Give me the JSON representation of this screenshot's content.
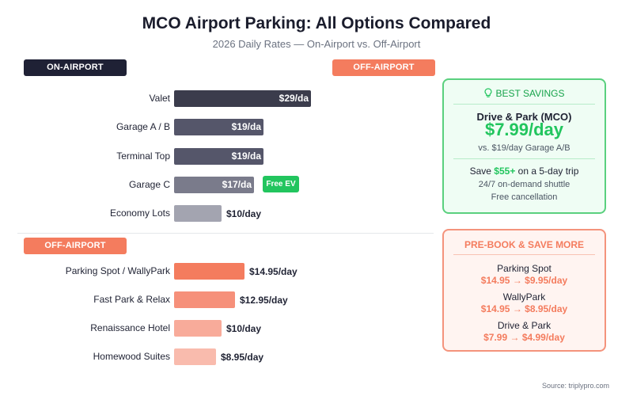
{
  "title": "MCO Airport Parking: All Options Compared",
  "subtitle": "2026 Daily Rates — On-Airport vs. Off-Airport",
  "sections": {
    "on_airport": "ON-AIRPORT",
    "off_airport_top": "OFF-AIRPORT",
    "off_airport": "OFF-AIRPORT"
  },
  "chart_data": {
    "type": "bar",
    "orientation": "horizontal",
    "unit": "$/day",
    "groups": [
      {
        "name": "ON-AIRPORT",
        "categories": [
          "Valet",
          "Garage A / B",
          "Terminal Top",
          "Garage C",
          "Economy Lots"
        ],
        "values": [
          29,
          19,
          19,
          17,
          10
        ],
        "labels": [
          "$29/da",
          "$19/da",
          "$19/da",
          "$17/da",
          "$10/day"
        ],
        "colors": [
          "#3b3c4c",
          "#55566a",
          "#55566a",
          "#7a7b8b",
          "#a3a4b0"
        ]
      },
      {
        "name": "OFF-AIRPORT",
        "categories": [
          "Parking Spot / WallyPark",
          "Fast Park & Relax",
          "Renaissance Hotel",
          "Homewood Suites"
        ],
        "values": [
          14.95,
          12.95,
          10,
          8.95
        ],
        "labels": [
          "$14.95/day",
          "$12.95/day",
          "$10/day",
          "$8.95/day"
        ],
        "colors": [
          "#f47c5e",
          "#f6907a",
          "#f8ab9a",
          "#f9bbad"
        ]
      }
    ],
    "annotations": [
      {
        "category": "Garage C",
        "text": "Free EV"
      }
    ]
  },
  "best_savings": {
    "header": "BEST SAVINGS",
    "icon": "lightbulb-icon",
    "name": "Drive & Park (MCO)",
    "price": "$7.99/day",
    "compare": "vs. $19/day Garage A/B",
    "save_prefix": "Save ",
    "save_amount": "$55+",
    "save_suffix": " on a 5-day trip",
    "feature1": "24/7 on-demand shuttle",
    "feature2": "Free cancellation"
  },
  "prebook": {
    "header": "PRE-BOOK & SAVE MORE",
    "items": [
      {
        "name": "Parking Spot",
        "deal": "$14.95 → $9.95/day"
      },
      {
        "name": "WallyPark",
        "deal": "$14.95 → $8.95/day"
      },
      {
        "name": "Drive & Park",
        "deal": "$7.99 → $4.99/day"
      }
    ]
  },
  "colors": {
    "dark": "#1f2135",
    "coral": "#f47c5e",
    "green": "#22c55e",
    "green_dark": "#16a34a"
  },
  "source": "Source: triplypro.com"
}
